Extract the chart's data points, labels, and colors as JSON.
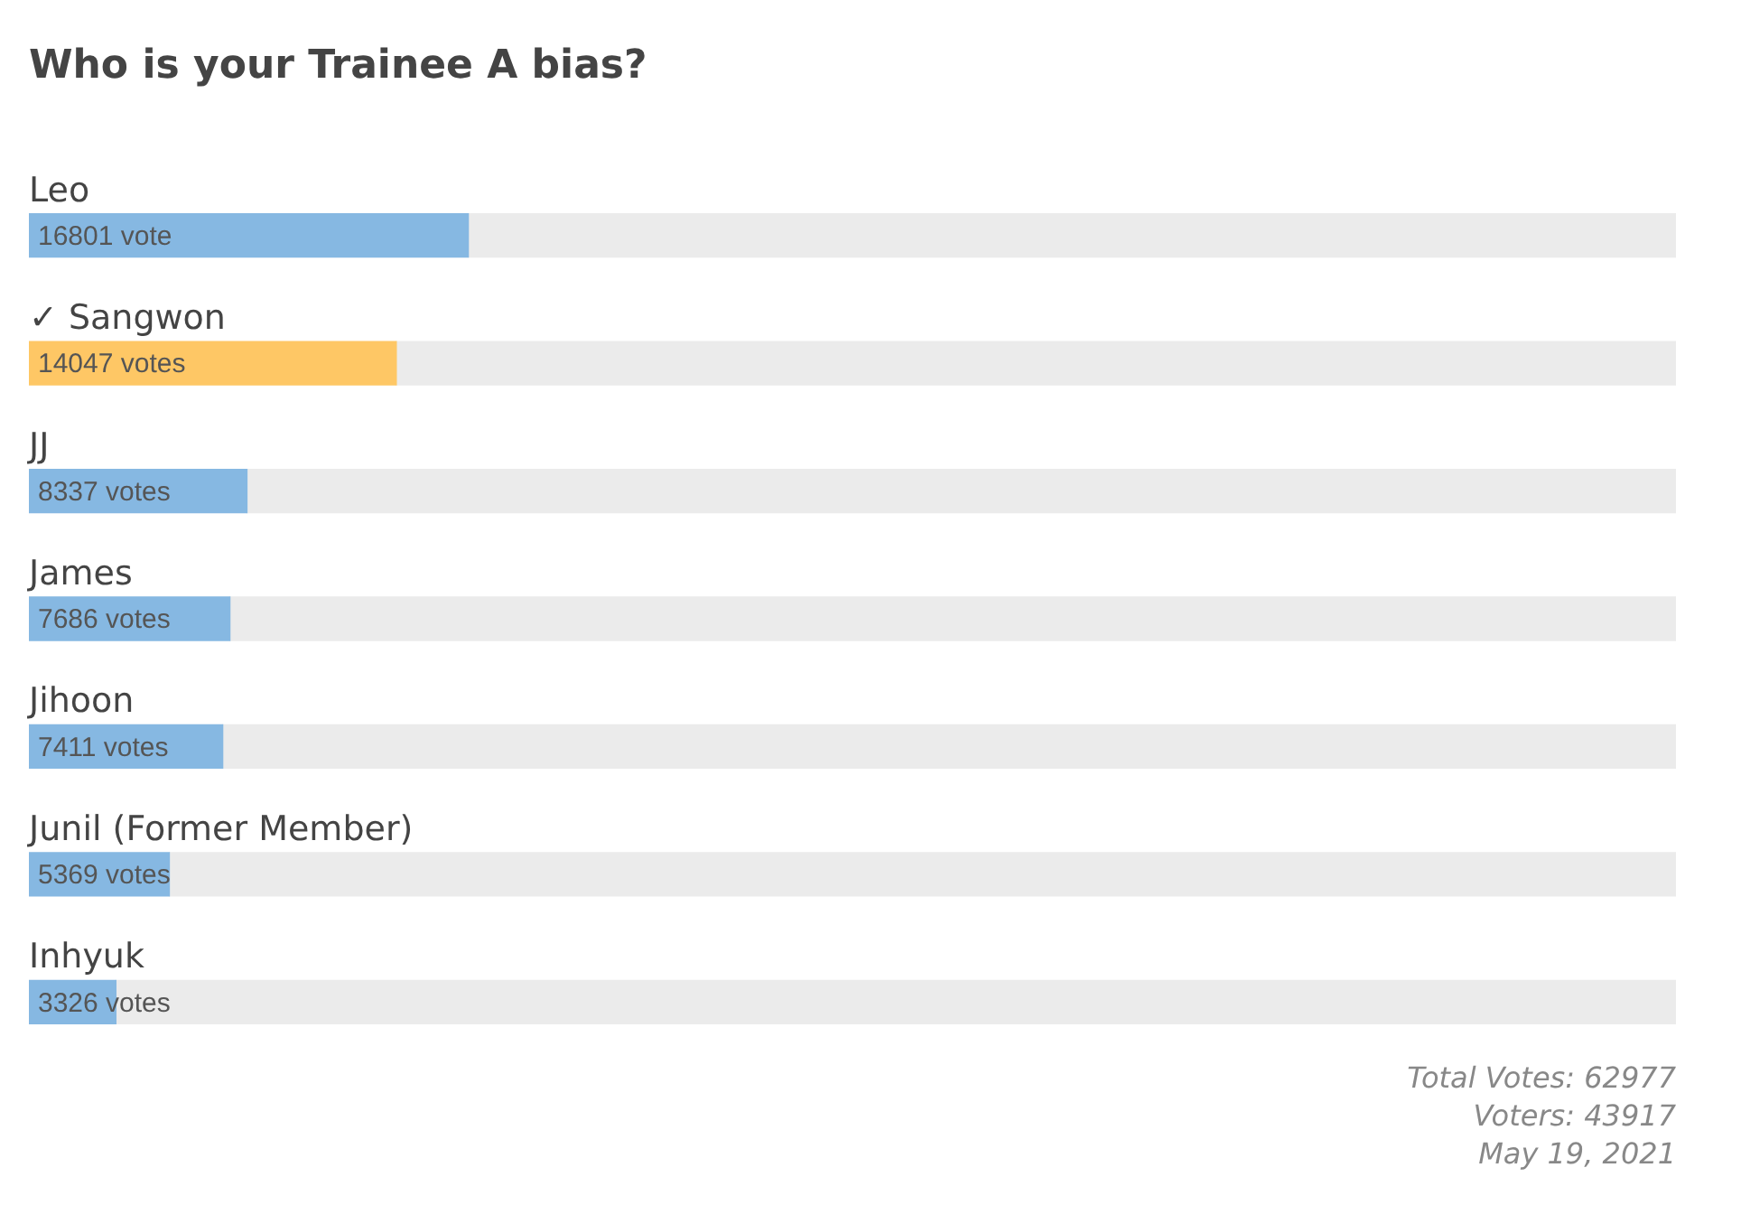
{
  "chart_data": {
    "type": "bar",
    "orientation": "horizontal",
    "title": "Who is your Trainee A bias?",
    "categories": [
      "Leo",
      "✓ Sangwon",
      "JJ",
      "James",
      "Jihoon",
      "Junil (Former Member)",
      "Inhyuk"
    ],
    "stacked": true,
    "series": [
      {
        "colors": [
          "#86b8e2",
          "#fec765",
          "#86b8e2",
          "#86b8e2",
          "#86b8e2",
          "#86b8e2",
          "#86b8e2"
        ],
        "values": [
          16801,
          14047,
          8337,
          7686,
          7411,
          5369,
          3326
        ],
        "value_labels": [
          "16801 vote",
          "14047 votes",
          "8337 votes",
          "7686 votes",
          "7411 votes",
          "5369 votes",
          "3326 votes"
        ]
      },
      {
        "color": "#ebebeb",
        "values": [
          46176,
          48930,
          54640,
          55291,
          55566,
          57608,
          59651
        ]
      }
    ],
    "xlim": [
      0,
      62977
    ],
    "tick_labels": false,
    "annotations": [
      "Total Votes: 62977",
      "Voters: 43917",
      "May 19, 2021"
    ]
  }
}
